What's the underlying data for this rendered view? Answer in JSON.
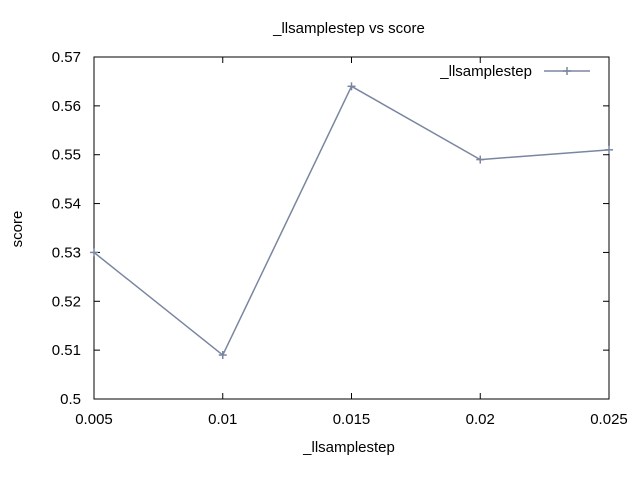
{
  "chart_data": {
    "type": "line",
    "title": "_llsamplestep vs score",
    "xlabel": "_llsamplestep",
    "ylabel": "score",
    "xlim": [
      0.005,
      0.025
    ],
    "ylim": [
      0.5,
      0.57
    ],
    "x_ticks": [
      "0.005",
      "0.01",
      "0.015",
      "0.02",
      "0.025"
    ],
    "y_ticks": [
      "0.5",
      "0.51",
      "0.52",
      "0.53",
      "0.54",
      "0.55",
      "0.56",
      "0.57"
    ],
    "grid": false,
    "legend_position": "top-right",
    "series": [
      {
        "name": "_llsamplestep",
        "color": "#7a86a0",
        "marker": "plus",
        "x": [
          0.005,
          0.01,
          0.015,
          0.02,
          0.025
        ],
        "y": [
          0.53,
          0.509,
          0.564,
          0.549,
          0.551
        ]
      }
    ]
  }
}
